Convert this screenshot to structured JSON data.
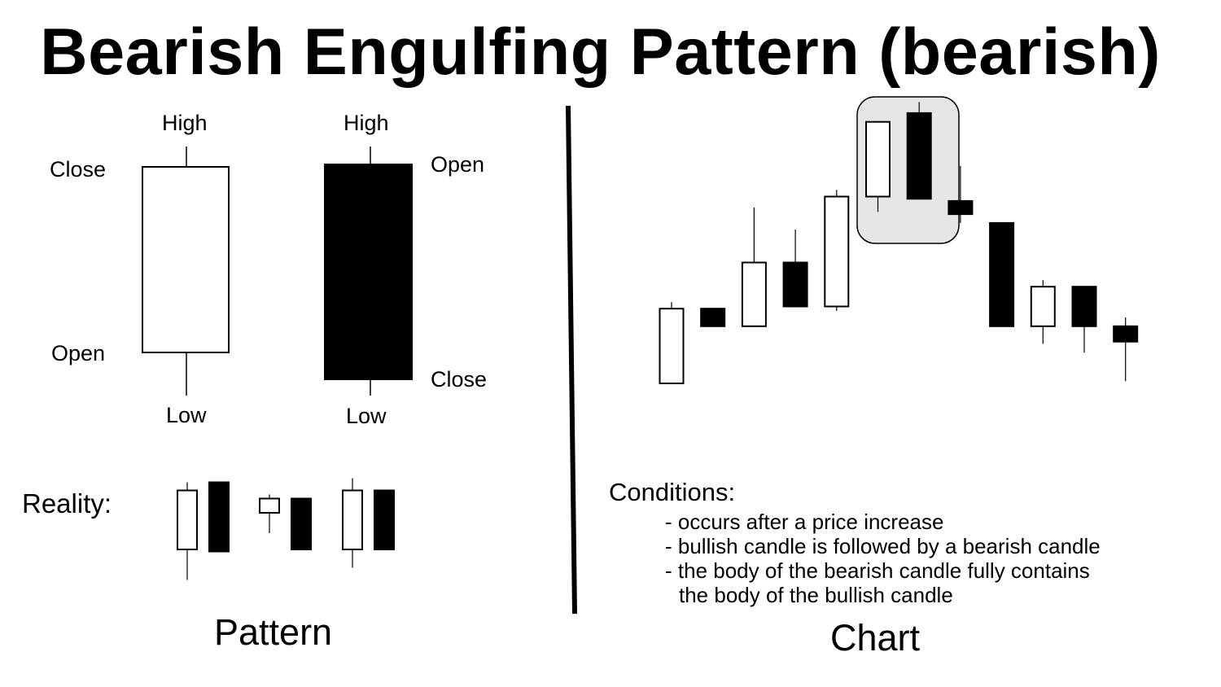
{
  "title": "Bearish Engulfing Pattern (bearish)",
  "pattern_labels": {
    "bull_high": "High",
    "bull_close": "Close",
    "bull_open": "Open",
    "bull_low": "Low",
    "bear_high": "High",
    "bear_open": "Open",
    "bear_close": "Close",
    "bear_low": "Low"
  },
  "reality_label": "Reality:",
  "pattern_caption": "Pattern",
  "chart_caption": "Chart",
  "conditions": {
    "heading": "Conditions:",
    "items": [
      "- occurs after a price increase",
      "- bullish candle is followed by a bearish candle",
      "- the body of the bearish candle fully contains"
    ],
    "continuation": "the body of the bullish candle"
  },
  "colors": {
    "bullish_fill": "#ffffff",
    "bearish_fill": "#000000",
    "highlight_fill": "#e6e6e6"
  },
  "chart_data": {
    "type": "candlestick",
    "highlighted_candles": [
      5,
      6
    ],
    "candles": [
      {
        "open": 30,
        "close": 64,
        "high": 67,
        "low": 30,
        "type": "bullish"
      },
      {
        "open": 64,
        "close": 56,
        "high": 64,
        "low": 56,
        "type": "bearish"
      },
      {
        "open": 56,
        "close": 85,
        "high": 110,
        "low": 56,
        "type": "bullish"
      },
      {
        "open": 85,
        "close": 65,
        "high": 100,
        "low": 65,
        "type": "bearish"
      },
      {
        "open": 65,
        "close": 115,
        "high": 118,
        "low": 63,
        "type": "bullish"
      },
      {
        "open": 115,
        "close": 149,
        "high": 149,
        "low": 108,
        "type": "bullish"
      },
      {
        "open": 153,
        "close": 114,
        "high": 158,
        "low": 114,
        "type": "bearish"
      },
      {
        "open": 113,
        "close": 107,
        "high": 129,
        "low": 103,
        "type": "bearish"
      },
      {
        "open": 103,
        "close": 56,
        "high": 103,
        "low": 56,
        "type": "bearish"
      },
      {
        "open": 56,
        "close": 74,
        "high": 77,
        "low": 48,
        "type": "bullish"
      },
      {
        "open": 74,
        "close": 56,
        "high": 74,
        "low": 44,
        "type": "bearish"
      },
      {
        "open": 56,
        "close": 49,
        "high": 60,
        "low": 31,
        "type": "bearish"
      }
    ],
    "reality_examples": [
      [
        {
          "open": 32,
          "close": 61,
          "high": 65,
          "low": 17,
          "type": "bullish"
        },
        {
          "open": 65,
          "close": 31,
          "high": 65,
          "low": 31,
          "type": "bearish"
        }
      ],
      [
        {
          "open": 50,
          "close": 57,
          "high": 59,
          "low": 40,
          "type": "bullish"
        },
        {
          "open": 57,
          "close": 32,
          "high": 57,
          "low": 32,
          "type": "bearish"
        }
      ],
      [
        {
          "open": 32,
          "close": 61,
          "high": 67,
          "low": 23,
          "type": "bullish"
        },
        {
          "open": 61,
          "close": 32,
          "high": 61,
          "low": 32,
          "type": "bearish"
        }
      ]
    ]
  }
}
